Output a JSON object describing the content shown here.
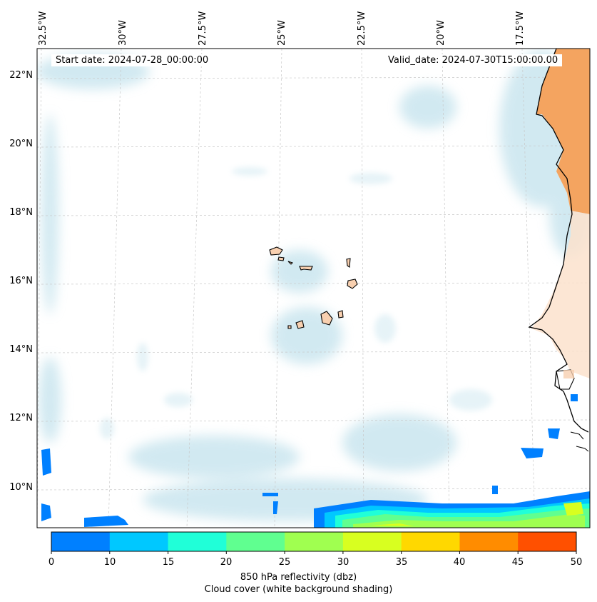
{
  "header": {
    "start_date": "Start date: 2024-07-28_00:00:00",
    "valid_date": "Valid_date: 2024-07-30T15:00:00.00"
  },
  "lon_labels": [
    "32.5°W",
    "30°W",
    "27.5°W",
    "25°W",
    "22.5°W",
    "20°W",
    "17.5°W"
  ],
  "lat_labels": [
    "22°N",
    "20°N",
    "18°N",
    "16°N",
    "14°N",
    "12°N",
    "10°N"
  ],
  "colorbar": {
    "ticks": [
      "0",
      "10",
      "15",
      "20",
      "25",
      "30",
      "35",
      "40",
      "45",
      "50"
    ],
    "colors": [
      "#0080ff",
      "#00c8ff",
      "#20ffd8",
      "#60ff90",
      "#a0ff50",
      "#d8ff20",
      "#ffd800",
      "#ff8c00",
      "#ff5000"
    ],
    "label_line1": "850 hPa reflectivity (dbz)",
    "label_line2": "Cloud cover (white background shading)"
  },
  "colors": {
    "land": "#f4a460",
    "island_fill": "#f8d0b0",
    "cloud": "#add8e6"
  }
}
